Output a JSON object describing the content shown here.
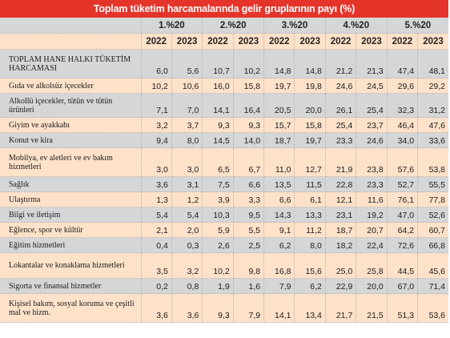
{
  "title": "Toplam tüketim harcamalarında gelir gruplarının payı (%)",
  "groups": [
    "1.%20",
    "2.%20",
    "3.%20",
    "4.%20",
    "5.%20"
  ],
  "years": [
    "2022",
    "2023"
  ],
  "rows": [
    {
      "label": "TOPLAM HANE HALKI TÜKETİM HARCAMASI",
      "values": [
        "6,0",
        "5,6",
        "10,7",
        "10,2",
        "14,8",
        "14,8",
        "21,2",
        "21,3",
        "47,4",
        "48,1"
      ]
    },
    {
      "label": "Gıda ve alkolsüz içecekler",
      "values": [
        "10,2",
        "10,6",
        "16,0",
        "15,8",
        "19,7",
        "19,8",
        "24,6",
        "24,5",
        "29,6",
        "29,2"
      ]
    },
    {
      "label": "Alkollü içecekler, tütün ve tütün ürünleri",
      "values": [
        "7,1",
        "7,0",
        "14,1",
        "16,4",
        "20,5",
        "20,0",
        "26,1",
        "25,4",
        "32,3",
        "31,2"
      ]
    },
    {
      "label": "Giyim ve ayakkabı",
      "values": [
        "3,2",
        "3,7",
        "9,3",
        "9,3",
        "15,7",
        "15,8",
        "25,4",
        "23,7",
        "46,4",
        "47,6"
      ]
    },
    {
      "label": "Konut ve kira",
      "values": [
        "9,4",
        "8,0",
        "14,5",
        "14,0",
        "18,7",
        "19,7",
        "23,3",
        "24,6",
        "34,0",
        "33,6"
      ]
    },
    {
      "label": "Mobilya, ev aletleri ve ev bakım hizmetleri",
      "values": [
        "3,0",
        "3,0",
        "6,5",
        "6,7",
        "11,0",
        "12,7",
        "21,9",
        "23,8",
        "57,6",
        "53,8"
      ]
    },
    {
      "label": "Sağlık",
      "values": [
        "3,6",
        "3,1",
        "7,5",
        "6,6",
        "13,5",
        "11,5",
        "22,8",
        "23,3",
        "52,7",
        "55,5"
      ]
    },
    {
      "label": "Ulaştırma",
      "values": [
        "1,3",
        "1,2",
        "3,9",
        "3,3",
        "6,6",
        "6,1",
        "12,1",
        "11,6",
        "76,1",
        "77,8"
      ]
    },
    {
      "label": "Bilgi ve iletişim",
      "values": [
        "5,4",
        "5,4",
        "10,3",
        "9,5",
        "14,3",
        "13,3",
        "23,1",
        "19,2",
        "47,0",
        "52,6"
      ]
    },
    {
      "label": "Eğlence, spor ve kültür",
      "values": [
        "2,1",
        "2,0",
        "5,9",
        "5,5",
        "9,1",
        "11,2",
        "18,7",
        "20,7",
        "64,2",
        "60,7"
      ]
    },
    {
      "label": "Eğitim hizmetleri",
      "values": [
        "0,4",
        "0,3",
        "2,6",
        "2,5",
        "6,2",
        "8,0",
        "18,2",
        "22,4",
        "72,6",
        "66,8"
      ]
    },
    {
      "label": "Lokantalar ve konaklama hizmetleri",
      "values": [
        "3,5",
        "3,2",
        "10,2",
        "9,8",
        "16,8",
        "15,6",
        "25,0",
        "25,8",
        "44,5",
        "45,6"
      ]
    },
    {
      "label": "Sigorta ve finansal hizmetler",
      "values": [
        "0,2",
        "0,8",
        "1,9",
        "1,6",
        "7,9",
        "6,2",
        "22,9",
        "20,0",
        "67,0",
        "71,4"
      ]
    },
    {
      "label": "Kişisel bakım, sosyal koruma ve çeşitli mal ve hizm.",
      "values": [
        "3,6",
        "3,6",
        "9,3",
        "7,9",
        "14,1",
        "13,4",
        "21,7",
        "21,5",
        "51,3",
        "53,6"
      ]
    }
  ],
  "colors": {
    "title_bg": "#e5342a",
    "gray_row": "#d5d6d8",
    "peach_row": "#fde1c9"
  }
}
